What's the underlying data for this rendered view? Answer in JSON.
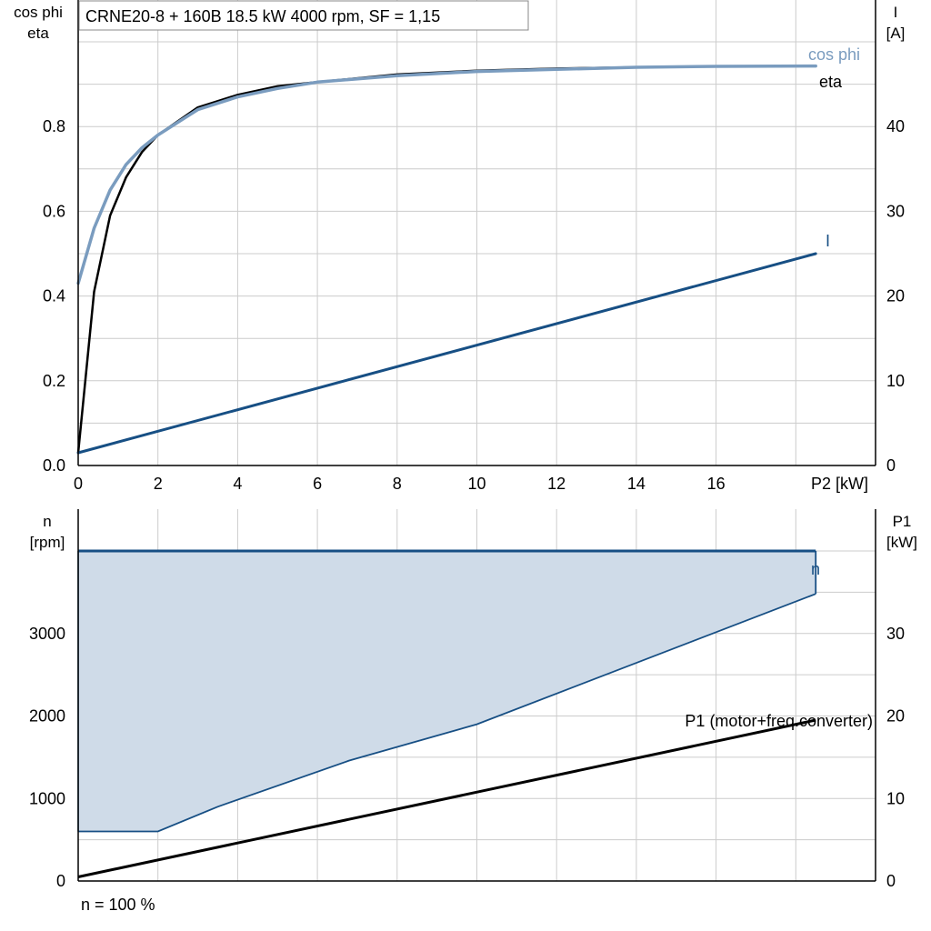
{
  "title": "CRNE20-8 + 160B   18.5 kW   4000 rpm, SF = 1,15",
  "footer": "n = 100 %",
  "colors": {
    "cosphi": "#7a9cbf",
    "eta": "#000000",
    "current": "#174f84",
    "speed": "#174f84",
    "speed_fill": "#cfdbe8",
    "p1": "#000000",
    "grid": "#cccccc"
  },
  "chart_data": [
    {
      "type": "line",
      "title": "CRNE20-8 + 160B   18.5 kW   4000 rpm, SF = 1,15",
      "xlabel": "P2 [kW]",
      "ylabel_left": [
        "cos phi",
        "eta"
      ],
      "ylabel_right": [
        "I",
        "[A]"
      ],
      "xlim": [
        0,
        20
      ],
      "ylim_left": [
        0,
        1.0
      ],
      "ylim_right": [
        0,
        50
      ],
      "x_ticks": [
        "0",
        "2",
        "4",
        "6",
        "8",
        "10",
        "12",
        "14",
        "16"
      ],
      "y_ticks_left": [
        "0.0",
        "0.2",
        "0.4",
        "0.6",
        "0.8"
      ],
      "y_ticks_right": [
        "0",
        "10",
        "20",
        "30",
        "40"
      ],
      "grid": true,
      "series": [
        {
          "name": "cos phi",
          "axis": "left",
          "x": [
            0,
            0.4,
            0.8,
            1.2,
            1.6,
            2,
            3,
            4,
            5,
            6,
            8,
            10,
            12,
            14,
            16,
            18.5
          ],
          "y": [
            0.43,
            0.56,
            0.65,
            0.71,
            0.75,
            0.78,
            0.84,
            0.87,
            0.89,
            0.905,
            0.92,
            0.93,
            0.935,
            0.94,
            0.942,
            0.943
          ]
        },
        {
          "name": "eta",
          "axis": "left",
          "x": [
            0,
            0.4,
            0.8,
            1.2,
            1.6,
            2,
            3,
            4,
            5,
            6,
            8,
            10,
            12,
            14,
            16,
            18.5
          ],
          "y": [
            0.03,
            0.41,
            0.59,
            0.68,
            0.74,
            0.78,
            0.845,
            0.875,
            0.895,
            0.905,
            0.923,
            0.932,
            0.937,
            0.94,
            0.942,
            0.943
          ]
        },
        {
          "name": "I",
          "axis": "right",
          "x": [
            0,
            18.5
          ],
          "y": [
            1.5,
            25
          ]
        }
      ]
    },
    {
      "type": "area",
      "xlim": [
        0,
        20
      ],
      "ylabel_left": [
        "n",
        "[rpm]"
      ],
      "ylabel_right": [
        "P1",
        "[kW]"
      ],
      "ylim_left": [
        0,
        4000
      ],
      "ylim_right": [
        0,
        40
      ],
      "y_ticks_left": [
        "0",
        "1000",
        "2000",
        "3000"
      ],
      "y_ticks_right": [
        "0",
        "10",
        "20",
        "30"
      ],
      "grid": true,
      "series": [
        {
          "name": "n",
          "axis": "left",
          "kind": "speed-envelope",
          "upper_x": [
            0,
            18.5
          ],
          "upper_y": [
            4000,
            4000
          ],
          "lower_x": [
            0,
            2,
            3.5,
            6.8,
            10,
            18.5
          ],
          "lower_y": [
            600,
            600,
            900,
            1460,
            1900,
            3480
          ]
        },
        {
          "name": "P1 (motor+freq.converter)",
          "axis": "right",
          "x": [
            0,
            18.5
          ],
          "y": [
            0.5,
            19.5
          ]
        }
      ]
    }
  ]
}
